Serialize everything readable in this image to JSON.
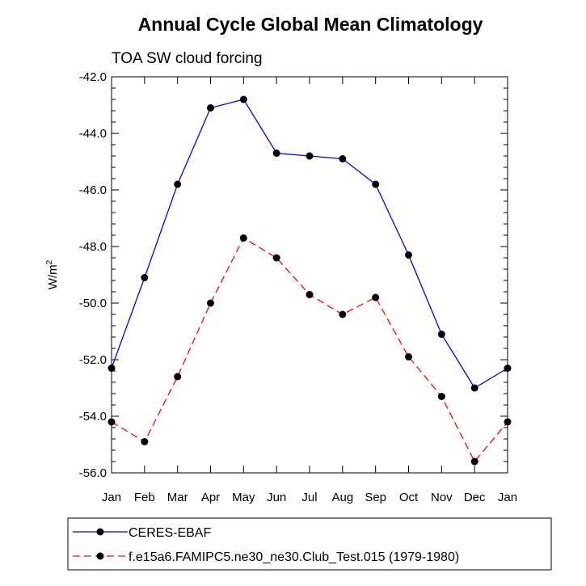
{
  "chart_data": {
    "type": "line",
    "title": "Annual Cycle Global Mean Climatology",
    "subtitle": "TOA SW cloud forcing",
    "ylabel": "W/m",
    "ylabel_superscript": "2",
    "xlabel": "",
    "categories": [
      "Jan",
      "Feb",
      "Mar",
      "Apr",
      "May",
      "Jun",
      "Jul",
      "Aug",
      "Sep",
      "Oct",
      "Nov",
      "Dec",
      "Jan"
    ],
    "ylim": [
      -56.0,
      -42.0
    ],
    "yticks": [
      "-42.0",
      "-44.0",
      "-46.0",
      "-48.0",
      "-50.0",
      "-52.0",
      "-54.0",
      "-56.0"
    ],
    "ytick_values": [
      -42,
      -44,
      -46,
      -48,
      -50,
      -52,
      -54,
      -56
    ],
    "grid": false,
    "legend_position": "bottom",
    "series": [
      {
        "name": "CERES-EBAF",
        "color": "#0000ff",
        "dash": "solid",
        "values": [
          -52.3,
          -49.1,
          -45.8,
          -43.1,
          -42.8,
          -44.7,
          -44.8,
          -44.9,
          -45.8,
          -48.3,
          -51.1,
          -53.0,
          -52.3
        ]
      },
      {
        "name": "f.e15a6.FAMIPC5.ne30_ne30.Club_Test.015 (1979-1980)",
        "color": "#ff0000",
        "dash": "dashed",
        "values": [
          -54.2,
          -54.9,
          -52.6,
          -50.0,
          -47.7,
          -48.4,
          -49.7,
          -50.4,
          -49.8,
          -51.9,
          -53.3,
          -55.6,
          -54.2
        ]
      }
    ]
  }
}
